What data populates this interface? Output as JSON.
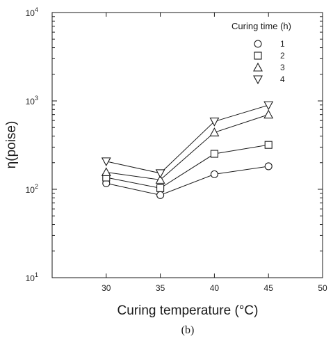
{
  "chart_data": {
    "type": "line",
    "xlabel": "Curing temperature (°C)",
    "ylabel": "η(poise)",
    "caption": "(b)",
    "xlim": [
      25,
      50
    ],
    "ylim": [
      10,
      10000
    ],
    "yscale": "log",
    "x_ticks": [
      30,
      35,
      40,
      45,
      50
    ],
    "y_ticks": [
      {
        "value": 10,
        "base": "10",
        "exp": "1"
      },
      {
        "value": 100,
        "base": "10",
        "exp": "2"
      },
      {
        "value": 1000,
        "base": "10",
        "exp": "3"
      },
      {
        "value": 10000,
        "base": "10",
        "exp": "4"
      }
    ],
    "grid": false,
    "legend": {
      "title": "Curing time (h)",
      "placement": "top-right"
    },
    "series": [
      {
        "name": "1",
        "marker": "circle",
        "x": [
          30,
          35,
          40,
          45
        ],
        "y": [
          117,
          86,
          148,
          182
        ]
      },
      {
        "name": "2",
        "marker": "square",
        "x": [
          30,
          35,
          40,
          45
        ],
        "y": [
          136,
          103,
          252,
          318
        ]
      },
      {
        "name": "3",
        "marker": "triangle-up",
        "x": [
          30,
          35,
          40,
          45
        ],
        "y": [
          156,
          128,
          440,
          700
        ]
      },
      {
        "name": "4",
        "marker": "triangle-down",
        "x": [
          30,
          35,
          40,
          45
        ],
        "y": [
          207,
          152,
          585,
          895
        ]
      }
    ]
  }
}
